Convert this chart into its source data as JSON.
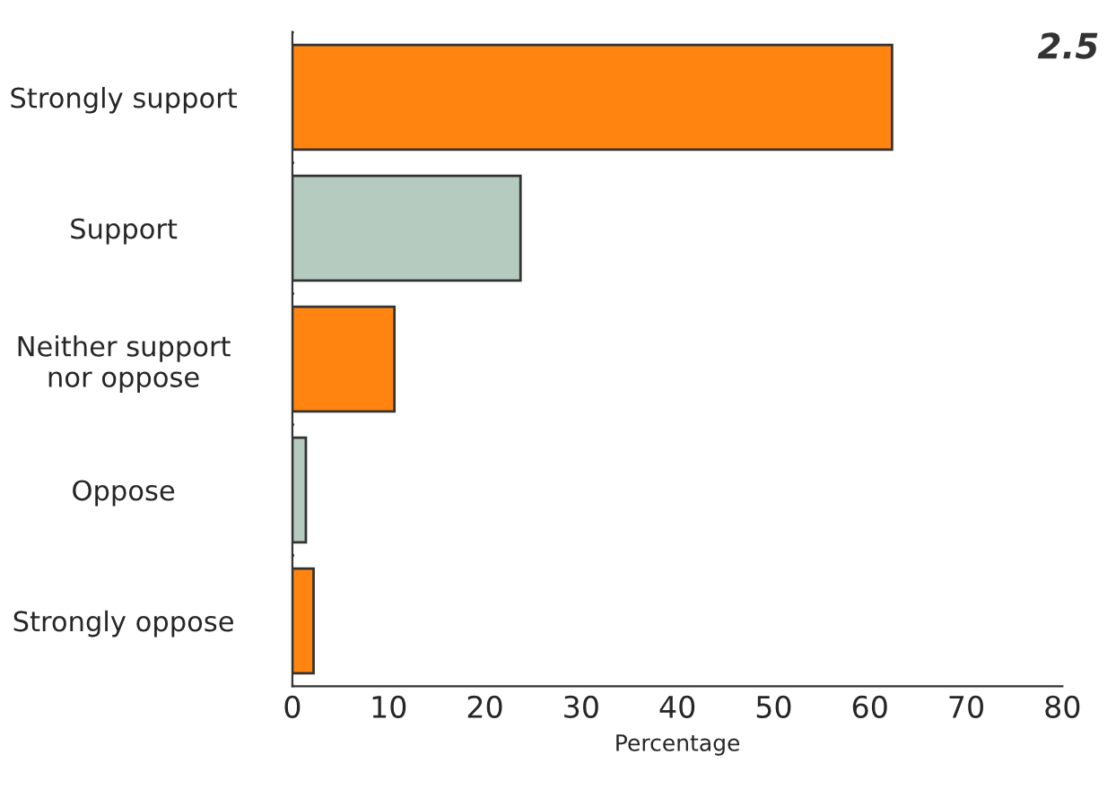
{
  "chart_data": {
    "type": "bar",
    "orientation": "horizontal",
    "categories": [
      "Strongly support",
      "Support",
      "Neither support\nnor oppose",
      "Oppose",
      "Strongly oppose"
    ],
    "values": [
      62.3,
      23.7,
      10.6,
      1.4,
      2.2
    ],
    "colors": [
      "#ff8410",
      "#b5cbbf",
      "#ff8410",
      "#b5cbbf",
      "#ff8410"
    ],
    "xlabel": "Percentage",
    "xlim": [
      0,
      80
    ],
    "xticks": [
      0,
      10,
      20,
      30,
      40,
      50,
      60,
      70,
      80
    ],
    "grid": false,
    "annotations": [
      "2.5"
    ]
  }
}
